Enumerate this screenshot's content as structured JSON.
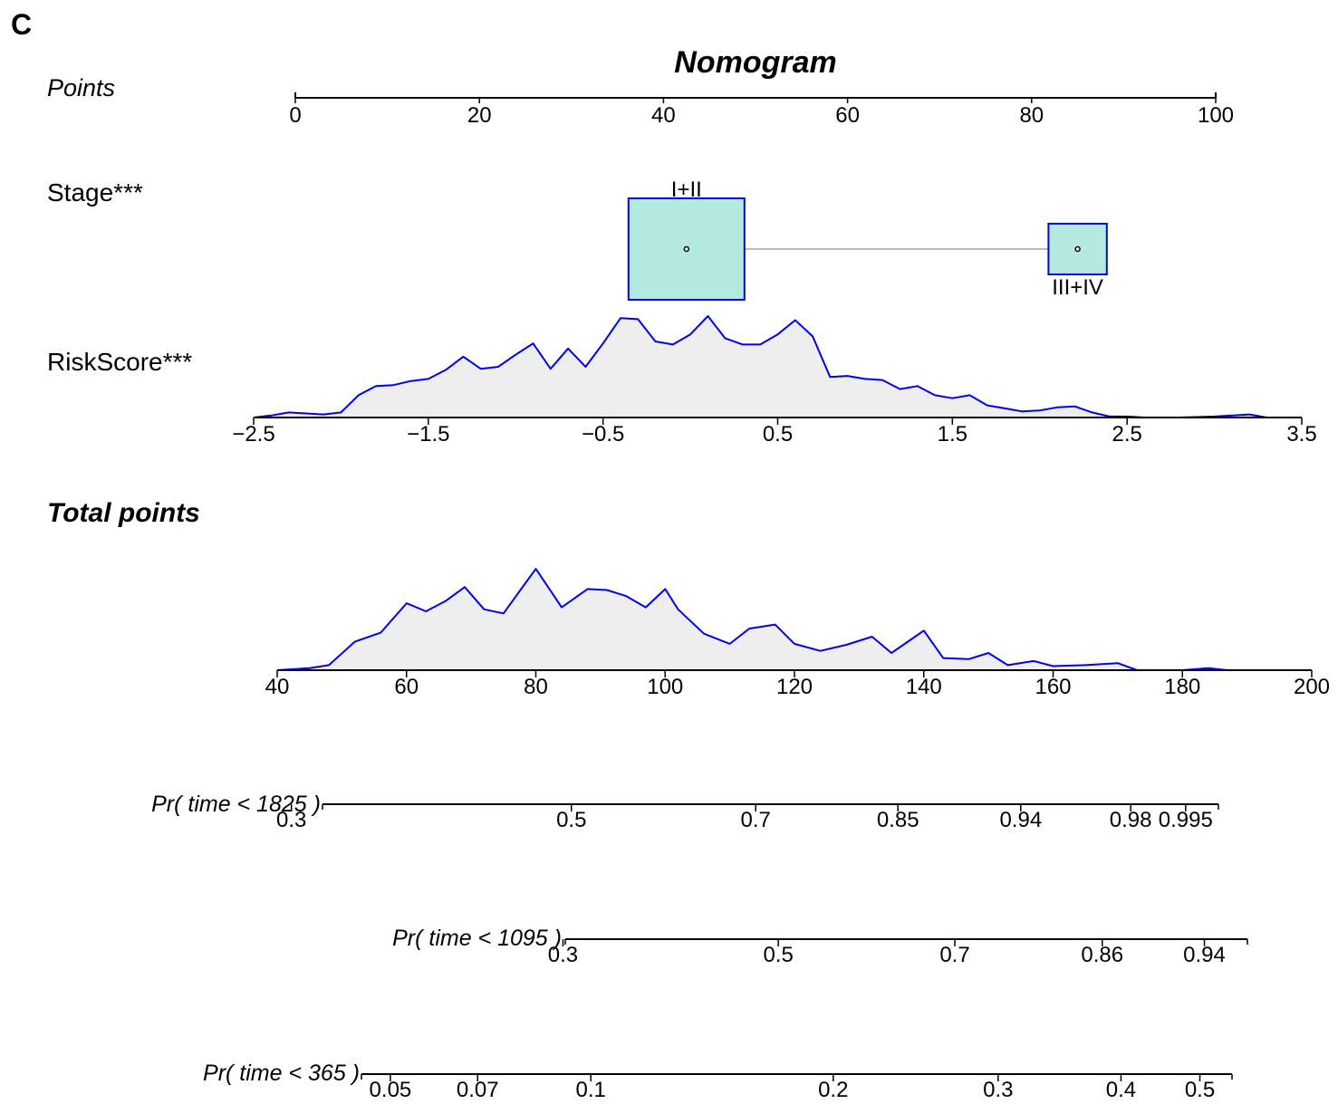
{
  "panel_label": "C",
  "title": "Nomogram",
  "colors": {
    "density_fill": "#eeeeee",
    "density_line": "#0000ee",
    "box_fill": "#b3e9df",
    "box_border": "#0000ee",
    "connector": "#bbbbbb",
    "axis": "#000000"
  },
  "rows": {
    "points": {
      "label": "Points",
      "ticks": [
        "0",
        "20",
        "40",
        "60",
        "80",
        "100"
      ]
    },
    "stage": {
      "label": "Stage***",
      "levels": [
        "I+II",
        "III+IV"
      ]
    },
    "riskscore": {
      "label": "RiskScore***",
      "ticks": [
        "−2.5",
        "−1.5",
        "−0.5",
        "0.5",
        "1.5",
        "2.5",
        "3.5"
      ]
    },
    "total_points": {
      "label": "Total points",
      "ticks": [
        "40",
        "60",
        "80",
        "100",
        "120",
        "140",
        "160",
        "180",
        "200"
      ]
    },
    "pr1825": {
      "label": "Pr( time < 1825 )",
      "ticks": [
        "0.3",
        "0.5",
        "0.7",
        "0.85",
        "0.94",
        "0.98",
        "0.995"
      ]
    },
    "pr1095": {
      "label": "Pr( time < 1095 )",
      "ticks": [
        "0.3",
        "0.5",
        "0.7",
        "0.86",
        "0.94"
      ]
    },
    "pr365": {
      "label": "Pr( time < 365 )",
      "ticks": [
        "0.05",
        "0.07",
        "0.1",
        "0.2",
        "0.3",
        "0.4",
        "0.5"
      ]
    }
  },
  "chart_data": {
    "type": "nomogram",
    "title": "Nomogram",
    "points_axis": {
      "min": 0,
      "max": 100,
      "ticks": [
        0,
        20,
        40,
        60,
        80,
        100
      ]
    },
    "stage": [
      {
        "level": "I+II",
        "points": 42.5,
        "relative_size": 1.0
      },
      {
        "level": "III+IV",
        "points": 85.0,
        "relative_size": 0.5
      }
    ],
    "riskscore": {
      "ticks": [
        -2.5,
        -1.5,
        -0.5,
        0.5,
        1.5,
        2.5,
        3.5
      ],
      "density": {
        "x": [
          -2.5,
          -2.4,
          -2.3,
          -2.2,
          -2.1,
          -2.0,
          -1.9,
          -1.8,
          -1.7,
          -1.6,
          -1.5,
          -1.4,
          -1.3,
          -1.2,
          -1.1,
          -1.0,
          -0.9,
          -0.8,
          -0.7,
          -0.6,
          -0.5,
          -0.4,
          -0.3,
          -0.2,
          -0.1,
          0.0,
          0.1,
          0.2,
          0.3,
          0.4,
          0.5,
          0.6,
          0.7,
          0.8,
          0.9,
          1.0,
          1.1,
          1.2,
          1.3,
          1.4,
          1.5,
          1.6,
          1.7,
          1.8,
          1.9,
          2.0,
          2.1,
          2.2,
          2.3,
          2.4,
          2.5,
          2.6,
          2.8,
          3.0,
          3.2,
          3.3,
          3.5
        ],
        "y": [
          0.0,
          0.02,
          0.05,
          0.04,
          0.03,
          0.05,
          0.22,
          0.31,
          0.32,
          0.36,
          0.38,
          0.47,
          0.6,
          0.48,
          0.5,
          0.62,
          0.73,
          0.48,
          0.68,
          0.5,
          0.73,
          0.98,
          0.97,
          0.75,
          0.72,
          0.82,
          1.0,
          0.78,
          0.72,
          0.72,
          0.82,
          0.96,
          0.8,
          0.4,
          0.41,
          0.38,
          0.37,
          0.28,
          0.31,
          0.22,
          0.19,
          0.22,
          0.12,
          0.09,
          0.06,
          0.07,
          0.1,
          0.11,
          0.05,
          0.01,
          0.01,
          0.0,
          0.0,
          0.01,
          0.03,
          0.0,
          0.0
        ]
      }
    },
    "total_points": {
      "ticks": [
        40,
        60,
        80,
        100,
        120,
        140,
        160,
        180,
        200
      ],
      "density": {
        "x": [
          40,
          45,
          48,
          52,
          56,
          60,
          63,
          66,
          69,
          72,
          75,
          80,
          84,
          88,
          91,
          94,
          97,
          100,
          102,
          106,
          110,
          113,
          117,
          120,
          124,
          128,
          132,
          135,
          140,
          143,
          147,
          150,
          153,
          157,
          160,
          165,
          170,
          173,
          180,
          184,
          187,
          189
        ],
        "y": [
          0.0,
          0.02,
          0.05,
          0.28,
          0.37,
          0.66,
          0.58,
          0.68,
          0.82,
          0.6,
          0.56,
          1.0,
          0.62,
          0.8,
          0.79,
          0.73,
          0.62,
          0.8,
          0.6,
          0.36,
          0.26,
          0.41,
          0.45,
          0.26,
          0.19,
          0.25,
          0.33,
          0.17,
          0.39,
          0.12,
          0.11,
          0.17,
          0.05,
          0.09,
          0.04,
          0.05,
          0.07,
          0.0,
          0.0,
          0.02,
          0.0,
          0.0
        ]
      }
    },
    "survival_axes": [
      {
        "label": "Pr( time < 1825 )",
        "ticks": [
          0.3,
          0.5,
          0.7,
          0.85,
          0.94,
          0.98,
          0.995
        ]
      },
      {
        "label": "Pr( time < 1095 )",
        "ticks": [
          0.3,
          0.5,
          0.7,
          0.86,
          0.94
        ]
      },
      {
        "label": "Pr( time < 365 )",
        "ticks": [
          0.05,
          0.07,
          0.1,
          0.2,
          0.3,
          0.4,
          0.5
        ]
      }
    ]
  }
}
